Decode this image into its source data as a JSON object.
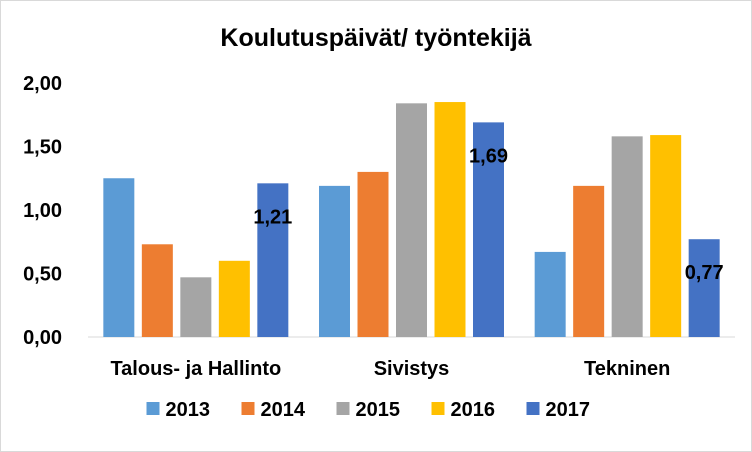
{
  "chart_data": {
    "type": "bar",
    "title": "Koulutuspäivät/ työntekijä",
    "categories": [
      "Talous- ja Hallinto",
      "Sivistys",
      "Tekninen"
    ],
    "series": [
      {
        "name": "2013",
        "values": [
          1.25,
          1.19,
          0.67
        ],
        "color": "#5b9bd5"
      },
      {
        "name": "2014",
        "values": [
          0.73,
          1.3,
          1.19
        ],
        "color": "#ed7d31"
      },
      {
        "name": "2015",
        "values": [
          0.47,
          1.84,
          1.58
        ],
        "color": "#a5a5a5"
      },
      {
        "name": "2016",
        "values": [
          0.6,
          1.85,
          1.59
        ],
        "color": "#ffc000"
      },
      {
        "name": "2017",
        "values": [
          1.21,
          1.69,
          0.77
        ],
        "color": "#4472c4"
      }
    ],
    "data_labels": [
      {
        "series": "2017",
        "category": "Talous- ja Hallinto",
        "text": "1,21"
      },
      {
        "series": "2017",
        "category": "Sivistys",
        "text": "1,69"
      },
      {
        "series": "2017",
        "category": "Tekninen",
        "text": "0,77"
      }
    ],
    "y_ticks": [
      "0,00",
      "0,50",
      "1,00",
      "1,50",
      "2,00"
    ],
    "ylim": [
      0,
      2
    ],
    "grid": false,
    "legend_position": "bottom"
  }
}
